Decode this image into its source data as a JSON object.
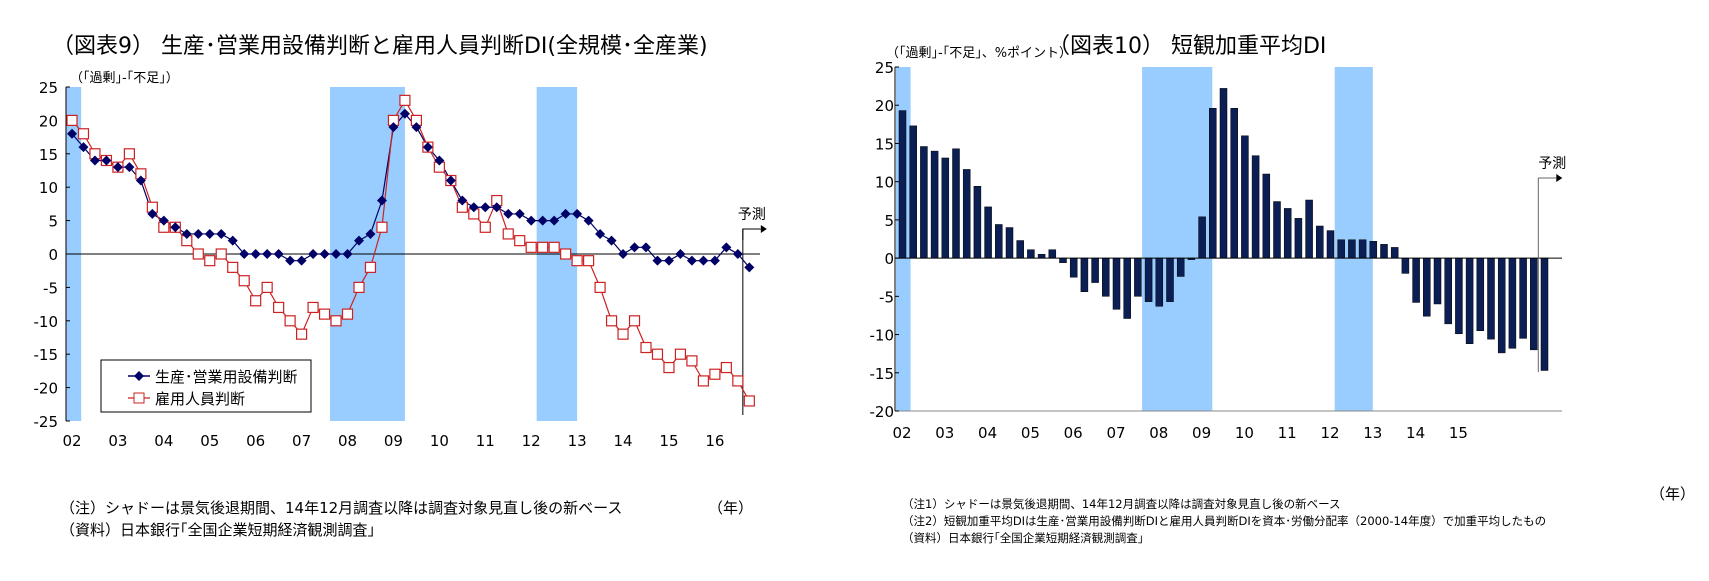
{
  "chart_data": [
    {
      "type": "line",
      "title": "（図表9） 生産･営業用設備判断と雇用人員判断DI(全規模･全産業)",
      "ylabel": "（｢過剰｣-｢不足｣）",
      "xlabel": "（年）",
      "ylim": [
        -25,
        25
      ],
      "yticks": [
        25,
        20,
        15,
        10,
        5,
        0,
        -5,
        -10,
        -15,
        -20,
        -25
      ],
      "x_tick_labels": [
        "02",
        "03",
        "04",
        "05",
        "06",
        "07",
        "08",
        "09",
        "10",
        "11",
        "12",
        "13",
        "14",
        "15",
        "16"
      ],
      "x_start": "2002Q1",
      "frequency": "quarterly",
      "forecast_label": "予測",
      "forecast_last_points": 1,
      "shading_label": "recession periods",
      "recession_shades": [
        [
          2002.0,
          2002.2
        ],
        [
          2007.75,
          2009.25
        ],
        [
          2012.25,
          2013.0
        ]
      ],
      "legend": {
        "position": "bottom-left"
      },
      "series": [
        {
          "name": "生産･営業用設備判断",
          "color": "#000066",
          "marker": "filled-diamond",
          "values": [
            18,
            16,
            14,
            14,
            13,
            13,
            11,
            6,
            5,
            4,
            3,
            3,
            3,
            3,
            2,
            0,
            0,
            0,
            0,
            -1,
            -1,
            0,
            0,
            0,
            0,
            2,
            3,
            8,
            19,
            21,
            19,
            16,
            14,
            11,
            8,
            7,
            7,
            7,
            6,
            6,
            5,
            5,
            5,
            6,
            6,
            5,
            3,
            2,
            0,
            1,
            1,
            -1,
            -1,
            0,
            -1,
            -1,
            -1,
            1,
            0,
            -2
          ]
        },
        {
          "name": "雇用人員判断",
          "color": "#CC2222",
          "marker": "hollow-square",
          "values": [
            20,
            18,
            15,
            14,
            13,
            15,
            12,
            7,
            4,
            4,
            2,
            0,
            -1,
            0,
            -2,
            -4,
            -7,
            -5,
            -8,
            -10,
            -12,
            -8,
            -9,
            -10,
            -9,
            -5,
            -2,
            4,
            20,
            23,
            20,
            16,
            13,
            11,
            7,
            6,
            4,
            8,
            3,
            2,
            1,
            1,
            1,
            0,
            -1,
            -1,
            -5,
            -10,
            -12,
            -10,
            -14,
            -15,
            -17,
            -15,
            -16,
            -19,
            -18,
            -17,
            -19,
            -22
          ]
        }
      ],
      "notes": [
        "（注）シャドーは景気後退期間、14年12月調査以降は調査対象見直し後の新ベース",
        "（資料）日本銀行｢全国企業短期経済観測調査｣"
      ]
    },
    {
      "type": "bar",
      "title": "（図表10） 短観加重平均DI",
      "ylabel": "（｢過剰｣-｢不足｣、%ポイント）",
      "xlabel": "（年）",
      "ylim": [
        -20,
        25
      ],
      "yticks": [
        25,
        20,
        15,
        10,
        5,
        0,
        -5,
        -10,
        -15,
        -20
      ],
      "x_tick_labels": [
        "02",
        "03",
        "04",
        "05",
        "06",
        "07",
        "08",
        "09",
        "10",
        "11",
        "12",
        "13",
        "14",
        "15"
      ],
      "x_start": "2002Q1",
      "frequency": "quarterly",
      "forecast_label": "予測",
      "forecast_last_points": 1,
      "recession_shades": [
        [
          2002.0,
          2002.2
        ],
        [
          2007.75,
          2009.25
        ],
        [
          2012.25,
          2013.0
        ]
      ],
      "bar_color": "#0B1F55",
      "values": [
        19.3,
        17.3,
        14.6,
        14.0,
        13.1,
        14.3,
        11.6,
        9.4,
        6.7,
        4.4,
        4.0,
        2.3,
        1.1,
        0.5,
        1.1,
        -0.6,
        -2.5,
        -4.4,
        -3.2,
        -5.0,
        -6.7,
        -7.9,
        -5.0,
        -5.7,
        -6.3,
        -5.7,
        -2.4,
        -0.2,
        5.4,
        19.6,
        22.2,
        19.6,
        16.0,
        13.4,
        11.0,
        7.4,
        6.5,
        5.2,
        7.6,
        4.2,
        3.6,
        2.4,
        2.4,
        2.4,
        2.2,
        1.8,
        1.4,
        -2.0,
        -5.8,
        -7.6,
        -6.0,
        -8.6,
        -9.9,
        -11.2,
        -9.5,
        -10.6,
        -12.4,
        -11.8,
        -10.5,
        -12.0,
        -14.7
      ],
      "notes": [
        "（注1）シャドーは景気後退期間、14年12月調査以降は調査対象見直し後の新ベース",
        "（注2）短観加重平均DIは生産･営業用設備判断DIと雇用人員判断DIを資本･労働分配率（2000-14年度）で加重平均したもの",
        "（資料）日本銀行｢全国企業短期経済観測調査｣"
      ]
    }
  ],
  "colors": {
    "shade": "#99CCFF",
    "axis": "#000000"
  }
}
